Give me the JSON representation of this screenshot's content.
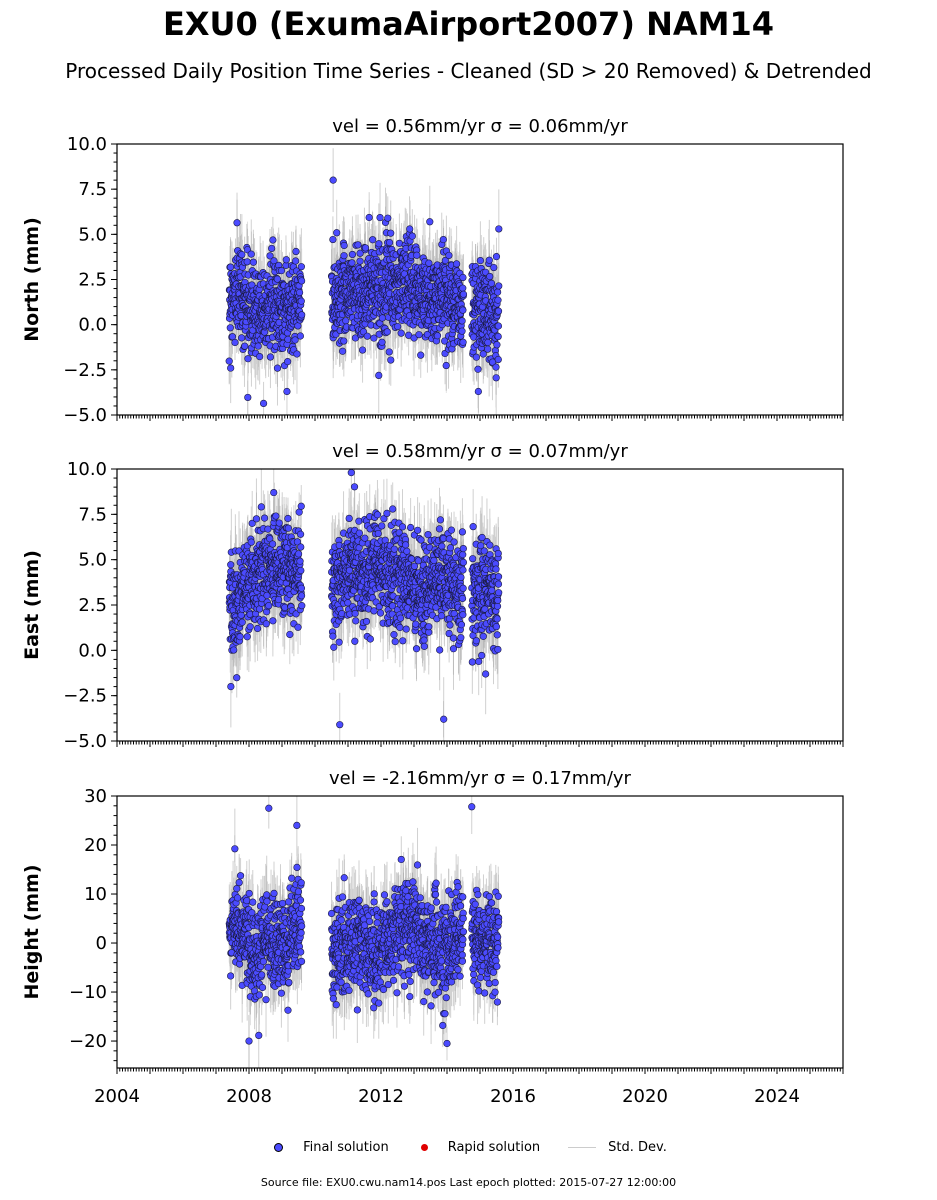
{
  "title": "EXU0 (ExumaAirport2007) NAM14",
  "subtitle": "Processed Daily Position Time Series - Cleaned (SD > 20 Removed) & Detrended",
  "legend": {
    "final": "Final solution",
    "rapid": "Rapid solution",
    "std": "Std. Dev.",
    "final_color": "#4b4bff",
    "rapid_color": "#e00000",
    "std_color": "#cccccc"
  },
  "footer": "Source file: EXU0.cwu.nam14.pos  Last epoch plotted: 2015-07-27 12:00:00",
  "chart_data": [
    {
      "type": "scatter",
      "title": "vel = 0.56mm/yr   σ = 0.06mm/yr",
      "ylabel": "North (mm)",
      "xlim": [
        2004,
        2026
      ],
      "ylim": [
        -5,
        10
      ],
      "yticks": [
        "−5.0",
        "−2.5",
        "0.0",
        "2.5",
        "5.0",
        "7.5",
        "10.0"
      ],
      "ytick_values": [
        -5,
        -2.5,
        0,
        2.5,
        5,
        7.5,
        10
      ],
      "grid": false,
      "segments": [
        [
          2007.4,
          2009.6
        ],
        [
          2010.5,
          2014.5
        ],
        [
          2014.75,
          2015.57
        ]
      ],
      "series": [
        {
          "name": "Final solution",
          "x": [
            2007.5,
            2007.7,
            2008.0,
            2008.3,
            2008.6,
            2008.9,
            2009.2,
            2009.5,
            2010.6,
            2010.9,
            2011.2,
            2011.5,
            2011.8,
            2012.1,
            2012.4,
            2012.7,
            2013.0,
            2013.3,
            2013.6,
            2013.9,
            2014.2,
            2014.4,
            2014.8,
            2015.0,
            2015.2,
            2015.5
          ],
          "y": [
            1.5,
            2.0,
            1.0,
            0.8,
            1.2,
            1.0,
            0.9,
            1.1,
            1.5,
            1.8,
            2.0,
            1.6,
            2.2,
            2.0,
            1.8,
            2.4,
            2.0,
            1.5,
            1.2,
            1.8,
            1.5,
            1.0,
            0.8,
            1.0,
            0.7,
            0.6
          ]
        },
        {
          "name": "Std. Dev.",
          "value": 1.5
        }
      ],
      "extremes": [
        [
          2010.55,
          8.0
        ],
        [
          2009.15,
          -3.7
        ],
        [
          2014.95,
          -3.7
        ],
        [
          2015.57,
          5.3
        ]
      ]
    },
    {
      "type": "scatter",
      "title": "vel = 0.58mm/yr   σ = 0.07mm/yr",
      "ylabel": "East (mm)",
      "xlim": [
        2004,
        2026
      ],
      "ylim": [
        -5,
        10
      ],
      "yticks": [
        "−5.0",
        "−2.5",
        "0.0",
        "2.5",
        "5.0",
        "7.5",
        "10.0"
      ],
      "ytick_values": [
        -5,
        -2.5,
        0,
        2.5,
        5,
        7.5,
        10
      ],
      "grid": false,
      "segments": [
        [
          2007.4,
          2009.6
        ],
        [
          2010.5,
          2014.5
        ],
        [
          2014.75,
          2015.57
        ]
      ],
      "series": [
        {
          "name": "Final solution",
          "x": [
            2007.5,
            2007.7,
            2008.0,
            2008.3,
            2008.6,
            2008.9,
            2009.2,
            2009.5,
            2010.6,
            2010.9,
            2011.2,
            2011.5,
            2011.8,
            2012.1,
            2012.4,
            2012.7,
            2013.0,
            2013.3,
            2013.6,
            2013.9,
            2014.2,
            2014.4,
            2014.8,
            2015.0,
            2015.2,
            2015.5
          ],
          "y": [
            2.0,
            2.8,
            3.6,
            4.0,
            4.5,
            4.8,
            4.6,
            4.4,
            3.8,
            4.2,
            4.6,
            4.0,
            4.8,
            4.4,
            3.8,
            4.0,
            3.6,
            3.2,
            3.8,
            4.0,
            3.6,
            3.5,
            3.2,
            3.6,
            3.3,
            3.0
          ]
        },
        {
          "name": "Std. Dev.",
          "value": 1.6
        }
      ],
      "extremes": [
        [
          2011.1,
          9.8
        ],
        [
          2010.75,
          -4.1
        ],
        [
          2013.9,
          -3.8
        ],
        [
          2007.45,
          -2.0
        ],
        [
          2008.75,
          8.7
        ]
      ]
    },
    {
      "type": "scatter",
      "title": "vel = -2.16mm/yr   σ = 0.17mm/yr",
      "ylabel": "Height (mm)",
      "xlabel": "",
      "xlim": [
        2004,
        2026
      ],
      "ylim": [
        -25.5,
        30
      ],
      "xticks": [
        "2004",
        "2008",
        "2012",
        "2016",
        "2020",
        "2024"
      ],
      "xtick_values": [
        2004,
        2008,
        2012,
        2016,
        2020,
        2024
      ],
      "yticks": [
        "−20",
        "−10",
        "0",
        "10",
        "20",
        "30"
      ],
      "ytick_values": [
        -20,
        -10,
        0,
        10,
        20,
        30
      ],
      "grid": false,
      "segments": [
        [
          2007.4,
          2009.6
        ],
        [
          2010.5,
          2014.5
        ],
        [
          2014.75,
          2015.57
        ]
      ],
      "series": [
        {
          "name": "Final solution",
          "x": [
            2007.5,
            2007.7,
            2008.0,
            2008.3,
            2008.6,
            2008.9,
            2009.2,
            2009.5,
            2010.6,
            2010.9,
            2011.2,
            2011.5,
            2011.8,
            2012.1,
            2012.4,
            2012.7,
            2013.0,
            2013.3,
            2013.6,
            2013.9,
            2014.2,
            2014.4,
            2014.8,
            2015.0,
            2015.2,
            2015.5
          ],
          "y": [
            3,
            4,
            0,
            -2,
            2,
            -1,
            0,
            3,
            -1,
            -2,
            1,
            0,
            -3,
            0,
            2,
            3,
            4,
            1,
            0,
            -2,
            0,
            1,
            2,
            0,
            1,
            0
          ]
        },
        {
          "name": "Std. Dev.",
          "value": 5.5
        }
      ],
      "extremes": [
        [
          2008.6,
          27.5
        ],
        [
          2014.75,
          27.8
        ],
        [
          2008.0,
          -20.0
        ],
        [
          2014.0,
          -20.5
        ],
        [
          2009.45,
          24.0
        ]
      ]
    }
  ]
}
